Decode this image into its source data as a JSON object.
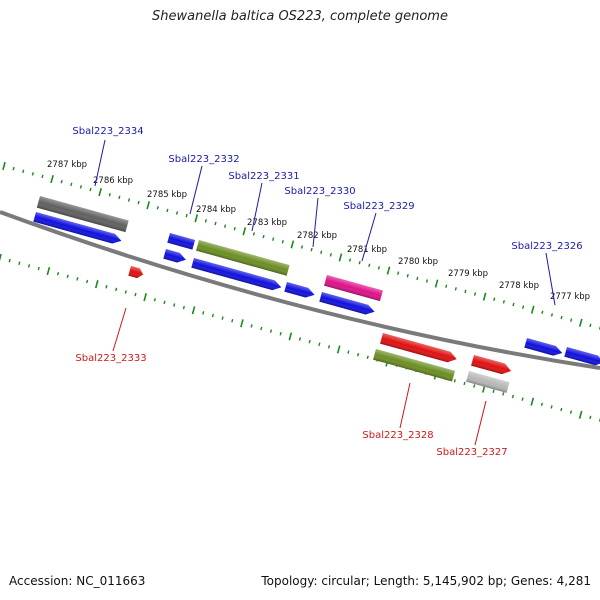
{
  "title": "Shewanella baltica OS223, complete genome",
  "footer": {
    "accession": "Accession: NC_011663",
    "summary": "Topology: circular; Length: 5,145,902 bp; Genes: 4,281"
  },
  "colors": {
    "forward_label": "#1a1aaa",
    "reverse_label": "#cc1a1a",
    "tick": "#1a8a1a",
    "backbone": "#7a7a7a",
    "blue": "#1010e0",
    "grey": "#606060",
    "olive": "#6b8e23",
    "magenta": "#e0108a",
    "red": "#e01010",
    "lightgrey": "#b8b8b8"
  },
  "ticks": [
    "2787 kbp",
    "2786 kbp",
    "2785 kbp",
    "2784 kbp",
    "2783 kbp",
    "2782 kbp",
    "2781 kbp",
    "2780 kbp",
    "2779 kbp",
    "2778 kbp",
    "2777 kbp"
  ],
  "genes_forward_labels": [
    "Sbal223_2334",
    "Sbal223_2332",
    "Sbal223_2331",
    "Sbal223_2330",
    "Sbal223_2329",
    "Sbal223_2326"
  ],
  "genes_reverse_labels": [
    "Sbal223_2333",
    "Sbal223_2328",
    "Sbal223_2327"
  ]
}
